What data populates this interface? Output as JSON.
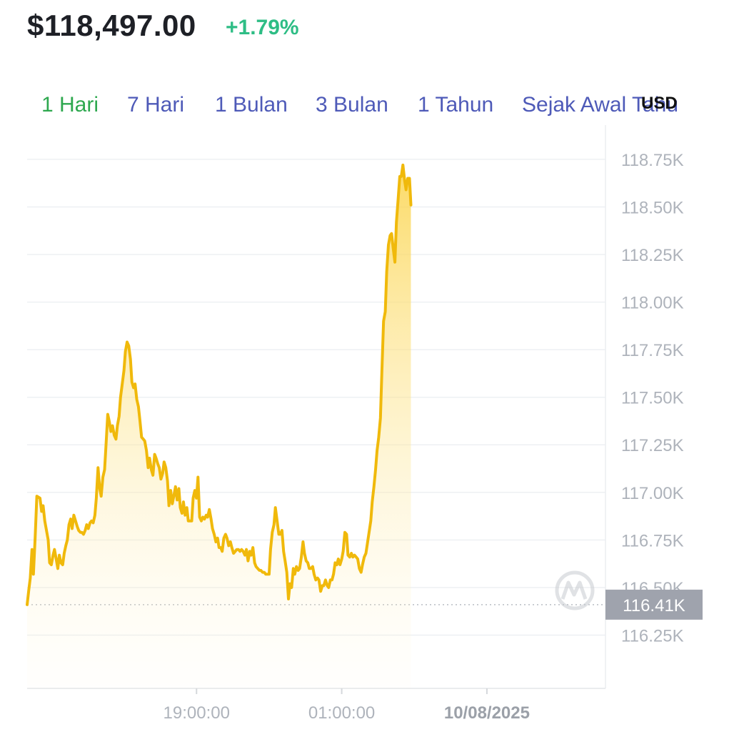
{
  "header": {
    "price": "$118,497.00",
    "change": "+1.79%"
  },
  "tabs": [
    {
      "label": "1 Hari",
      "active": true
    },
    {
      "label": "7 Hari",
      "active": false
    },
    {
      "label": "1 Bulan",
      "active": false
    },
    {
      "label": "3 Bulan",
      "active": false
    },
    {
      "label": "1 Tahun",
      "active": false
    },
    {
      "label": "Sejak Awal Tahu",
      "active": false
    }
  ],
  "currency": "USD",
  "colors": {
    "line": "#f0b90b",
    "positive": "#2ebd85",
    "tab_active": "#2ea84f",
    "tab": "#4e5ab8",
    "price_tag_bg": "#9fa3ad"
  },
  "logo": "coinmarketcap-watermark-icon",
  "chart_data": {
    "type": "area",
    "y_ticks": [
      "118.75K",
      "118.50K",
      "118.25K",
      "118.00K",
      "117.75K",
      "117.50K",
      "117.25K",
      "117.00K",
      "116.75K",
      "116.50K",
      "116.25K"
    ],
    "x_ticks": [
      {
        "label": "19:00:00",
        "bold": false,
        "t": 19.0
      },
      {
        "label": "01:00:00",
        "bold": false,
        "t": 25.0
      },
      {
        "label": "10/08/2025",
        "bold": true,
        "t": 31.0
      }
    ],
    "ylim": [
      115.97,
      118.93
    ],
    "xlim": [
      12.0,
      35.9
    ],
    "current_value": 116.41,
    "current_label": "116.41K",
    "grid": true,
    "series": [
      {
        "points": [
          [
            12.0,
            116.41
          ],
          [
            12.07,
            116.49
          ],
          [
            12.13,
            116.55
          ],
          [
            12.2,
            116.7
          ],
          [
            12.26,
            116.57
          ],
          [
            12.33,
            116.76
          ],
          [
            12.4,
            116.98
          ],
          [
            12.53,
            116.97
          ],
          [
            12.6,
            116.9
          ],
          [
            12.66,
            116.93
          ],
          [
            12.73,
            116.85
          ],
          [
            12.8,
            116.8
          ],
          [
            12.87,
            116.75
          ],
          [
            12.93,
            116.63
          ],
          [
            13.0,
            116.62
          ],
          [
            13.07,
            116.67
          ],
          [
            13.13,
            116.7
          ],
          [
            13.2,
            116.65
          ],
          [
            13.27,
            116.6
          ],
          [
            13.33,
            116.67
          ],
          [
            13.4,
            116.63
          ],
          [
            13.47,
            116.62
          ],
          [
            13.53,
            116.68
          ],
          [
            13.6,
            116.72
          ],
          [
            13.66,
            116.75
          ],
          [
            13.73,
            116.83
          ],
          [
            13.8,
            116.86
          ],
          [
            13.86,
            116.81
          ],
          [
            13.93,
            116.88
          ],
          [
            14.0,
            116.85
          ],
          [
            14.07,
            116.82
          ],
          [
            14.13,
            116.8
          ],
          [
            14.2,
            116.79
          ],
          [
            14.26,
            116.79
          ],
          [
            14.33,
            116.78
          ],
          [
            14.4,
            116.8
          ],
          [
            14.46,
            116.83
          ],
          [
            14.53,
            116.81
          ],
          [
            14.6,
            116.84
          ],
          [
            14.66,
            116.85
          ],
          [
            14.73,
            116.84
          ],
          [
            14.8,
            116.88
          ],
          [
            14.86,
            116.97
          ],
          [
            14.93,
            117.13
          ],
          [
            15.0,
            117.02
          ],
          [
            15.06,
            116.98
          ],
          [
            15.13,
            117.08
          ],
          [
            15.2,
            117.12
          ],
          [
            15.27,
            117.27
          ],
          [
            15.33,
            117.41
          ],
          [
            15.4,
            117.37
          ],
          [
            15.46,
            117.32
          ],
          [
            15.53,
            117.35
          ],
          [
            15.6,
            117.3
          ],
          [
            15.67,
            117.28
          ],
          [
            15.73,
            117.35
          ],
          [
            15.8,
            117.4
          ],
          [
            15.86,
            117.5
          ],
          [
            15.93,
            117.57
          ],
          [
            16.0,
            117.64
          ],
          [
            16.06,
            117.74
          ],
          [
            16.13,
            117.79
          ],
          [
            16.2,
            117.77
          ],
          [
            16.27,
            117.7
          ],
          [
            16.33,
            117.58
          ],
          [
            16.4,
            117.55
          ],
          [
            16.46,
            117.57
          ],
          [
            16.53,
            117.49
          ],
          [
            16.6,
            117.45
          ],
          [
            16.66,
            117.38
          ],
          [
            16.73,
            117.29
          ],
          [
            16.8,
            117.28
          ],
          [
            16.86,
            117.27
          ],
          [
            16.93,
            117.22
          ],
          [
            17.0,
            117.13
          ],
          [
            17.06,
            117.18
          ],
          [
            17.13,
            117.12
          ],
          [
            17.2,
            117.09
          ],
          [
            17.27,
            117.2
          ],
          [
            17.33,
            117.18
          ],
          [
            17.4,
            117.15
          ],
          [
            17.46,
            117.13
          ],
          [
            17.53,
            117.07
          ],
          [
            17.6,
            117.1
          ],
          [
            17.66,
            117.16
          ],
          [
            17.73,
            117.13
          ],
          [
            17.8,
            117.06
          ],
          [
            17.86,
            116.93
          ],
          [
            17.93,
            117.01
          ],
          [
            18.0,
            116.94
          ],
          [
            18.06,
            116.98
          ],
          [
            18.13,
            117.03
          ],
          [
            18.2,
            116.96
          ],
          [
            18.27,
            117.02
          ],
          [
            18.33,
            116.92
          ],
          [
            18.4,
            116.89
          ],
          [
            18.46,
            116.95
          ],
          [
            18.53,
            116.88
          ],
          [
            18.6,
            116.92
          ],
          [
            18.66,
            116.85
          ],
          [
            18.73,
            116.85
          ],
          [
            18.8,
            116.85
          ],
          [
            18.86,
            116.97
          ],
          [
            18.93,
            117.01
          ],
          [
            19.0,
            116.97
          ],
          [
            19.06,
            117.08
          ],
          [
            19.13,
            116.87
          ],
          [
            19.2,
            116.85
          ],
          [
            19.26,
            116.87
          ],
          [
            19.33,
            116.86
          ],
          [
            19.4,
            116.88
          ],
          [
            19.46,
            116.87
          ],
          [
            19.53,
            116.91
          ],
          [
            19.6,
            116.86
          ],
          [
            19.66,
            116.81
          ],
          [
            19.73,
            116.78
          ],
          [
            19.8,
            116.74
          ],
          [
            19.87,
            116.76
          ],
          [
            19.93,
            116.71
          ],
          [
            20.0,
            116.71
          ],
          [
            20.06,
            116.69
          ],
          [
            20.13,
            116.76
          ],
          [
            20.2,
            116.78
          ],
          [
            20.26,
            116.76
          ],
          [
            20.33,
            116.72
          ],
          [
            20.4,
            116.74
          ],
          [
            20.46,
            116.71
          ],
          [
            20.53,
            116.68
          ],
          [
            20.6,
            116.69
          ],
          [
            20.66,
            116.7
          ],
          [
            20.73,
            116.7
          ],
          [
            20.8,
            116.69
          ],
          [
            20.86,
            116.7
          ],
          [
            20.93,
            116.69
          ],
          [
            21.0,
            116.67
          ],
          [
            21.06,
            116.7
          ],
          [
            21.13,
            116.64
          ],
          [
            21.2,
            116.69
          ],
          [
            21.26,
            116.67
          ],
          [
            21.33,
            116.71
          ],
          [
            21.4,
            116.63
          ],
          [
            21.46,
            116.61
          ],
          [
            21.53,
            116.6
          ],
          [
            21.6,
            116.59
          ],
          [
            21.66,
            116.59
          ],
          [
            21.73,
            116.58
          ],
          [
            21.8,
            116.58
          ],
          [
            21.86,
            116.57
          ],
          [
            21.93,
            116.57
          ],
          [
            22.0,
            116.57
          ],
          [
            22.06,
            116.7
          ],
          [
            22.13,
            116.79
          ],
          [
            22.2,
            116.83
          ],
          [
            22.26,
            116.92
          ],
          [
            22.33,
            116.85
          ],
          [
            22.4,
            116.78
          ],
          [
            22.46,
            116.78
          ],
          [
            22.53,
            116.8
          ],
          [
            22.6,
            116.69
          ],
          [
            22.66,
            116.64
          ],
          [
            22.73,
            116.58
          ],
          [
            22.8,
            116.44
          ],
          [
            22.86,
            116.52
          ],
          [
            22.93,
            116.5
          ],
          [
            23.0,
            116.6
          ],
          [
            23.06,
            116.57
          ],
          [
            23.13,
            116.61
          ],
          [
            23.2,
            116.59
          ],
          [
            23.26,
            116.6
          ],
          [
            23.33,
            116.66
          ],
          [
            23.4,
            116.74
          ],
          [
            23.46,
            116.68
          ],
          [
            23.53,
            116.64
          ],
          [
            23.6,
            116.63
          ],
          [
            23.66,
            116.6
          ],
          [
            23.73,
            116.6
          ],
          [
            23.8,
            116.61
          ],
          [
            23.86,
            116.57
          ],
          [
            23.93,
            116.54
          ],
          [
            24.0,
            116.55
          ],
          [
            24.06,
            116.54
          ],
          [
            24.13,
            116.48
          ],
          [
            24.2,
            116.51
          ],
          [
            24.26,
            116.51
          ],
          [
            24.33,
            116.54
          ],
          [
            24.4,
            116.51
          ],
          [
            24.46,
            116.5
          ],
          [
            24.53,
            116.54
          ],
          [
            24.6,
            116.54
          ],
          [
            24.66,
            116.57
          ],
          [
            24.73,
            116.63
          ],
          [
            24.8,
            116.62
          ],
          [
            24.86,
            116.65
          ],
          [
            24.93,
            116.62
          ],
          [
            25.0,
            116.65
          ],
          [
            25.06,
            116.69
          ],
          [
            25.13,
            116.79
          ],
          [
            25.2,
            116.78
          ],
          [
            25.26,
            116.67
          ],
          [
            25.33,
            116.66
          ],
          [
            25.4,
            116.68
          ],
          [
            25.46,
            116.66
          ],
          [
            25.53,
            116.67
          ],
          [
            25.6,
            116.66
          ],
          [
            25.66,
            116.65
          ],
          [
            25.73,
            116.6
          ],
          [
            25.8,
            116.58
          ],
          [
            25.86,
            116.62
          ],
          [
            25.93,
            116.66
          ],
          [
            26.0,
            116.68
          ],
          [
            26.06,
            116.73
          ],
          [
            26.13,
            116.79
          ],
          [
            26.2,
            116.85
          ],
          [
            26.26,
            116.95
          ],
          [
            26.33,
            117.03
          ],
          [
            26.4,
            117.12
          ],
          [
            26.46,
            117.22
          ],
          [
            26.53,
            117.29
          ],
          [
            26.6,
            117.39
          ],
          [
            26.66,
            117.63
          ],
          [
            26.73,
            117.9
          ],
          [
            26.8,
            117.95
          ],
          [
            26.86,
            118.16
          ],
          [
            26.93,
            118.3
          ],
          [
            27.0,
            118.35
          ],
          [
            27.06,
            118.36
          ],
          [
            27.13,
            118.28
          ],
          [
            27.2,
            118.21
          ],
          [
            27.26,
            118.42
          ],
          [
            27.33,
            118.54
          ],
          [
            27.4,
            118.66
          ],
          [
            27.46,
            118.66
          ],
          [
            27.53,
            118.72
          ],
          [
            27.6,
            118.64
          ],
          [
            27.66,
            118.59
          ],
          [
            27.73,
            118.65
          ],
          [
            27.8,
            118.65
          ],
          [
            27.86,
            118.51
          ]
        ]
      }
    ]
  }
}
